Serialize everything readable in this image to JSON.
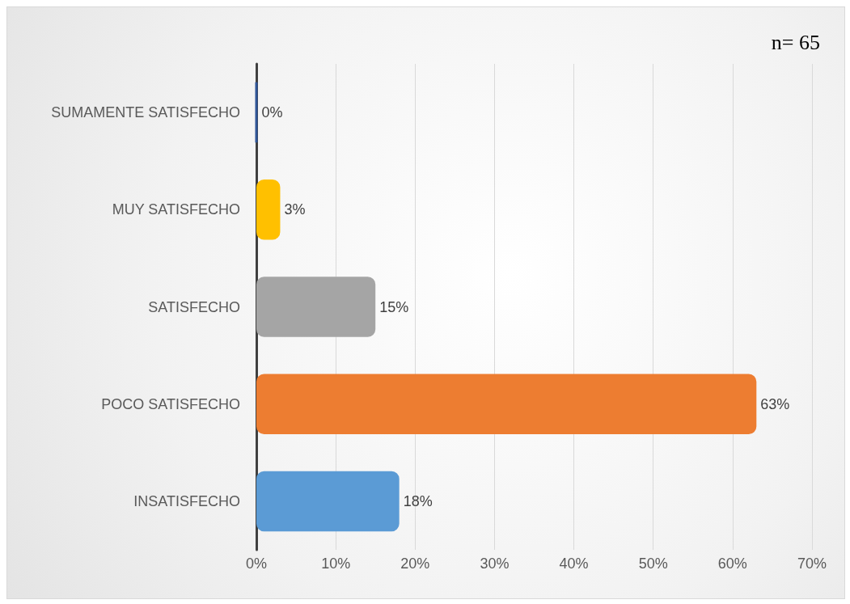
{
  "chart_data": {
    "type": "bar",
    "orientation": "horizontal",
    "categories": [
      "SUMAMENTE SATISFECHO",
      "MUY SATISFECHO",
      "SATISFECHO",
      "POCO SATISFECHO",
      "INSATISFECHO"
    ],
    "values": [
      0,
      3,
      15,
      63,
      18
    ],
    "colors": [
      "#2f5597",
      "#ffc000",
      "#a5a5a5",
      "#ed7d31",
      "#5b9bd5"
    ],
    "value_labels": [
      "0%",
      "3%",
      "15%",
      "63%",
      "18%"
    ],
    "xlim": [
      0,
      70
    ],
    "xticks": [
      {
        "value": 0,
        "label": "0%"
      },
      {
        "value": 10,
        "label": "10%"
      },
      {
        "value": 20,
        "label": "20%"
      },
      {
        "value": 30,
        "label": "30%"
      },
      {
        "value": 40,
        "label": "40%"
      },
      {
        "value": 50,
        "label": "50%"
      },
      {
        "value": 60,
        "label": "60%"
      },
      {
        "value": 70,
        "label": "70%"
      }
    ],
    "grid": "x",
    "annotations": [
      "n= 65"
    ]
  }
}
